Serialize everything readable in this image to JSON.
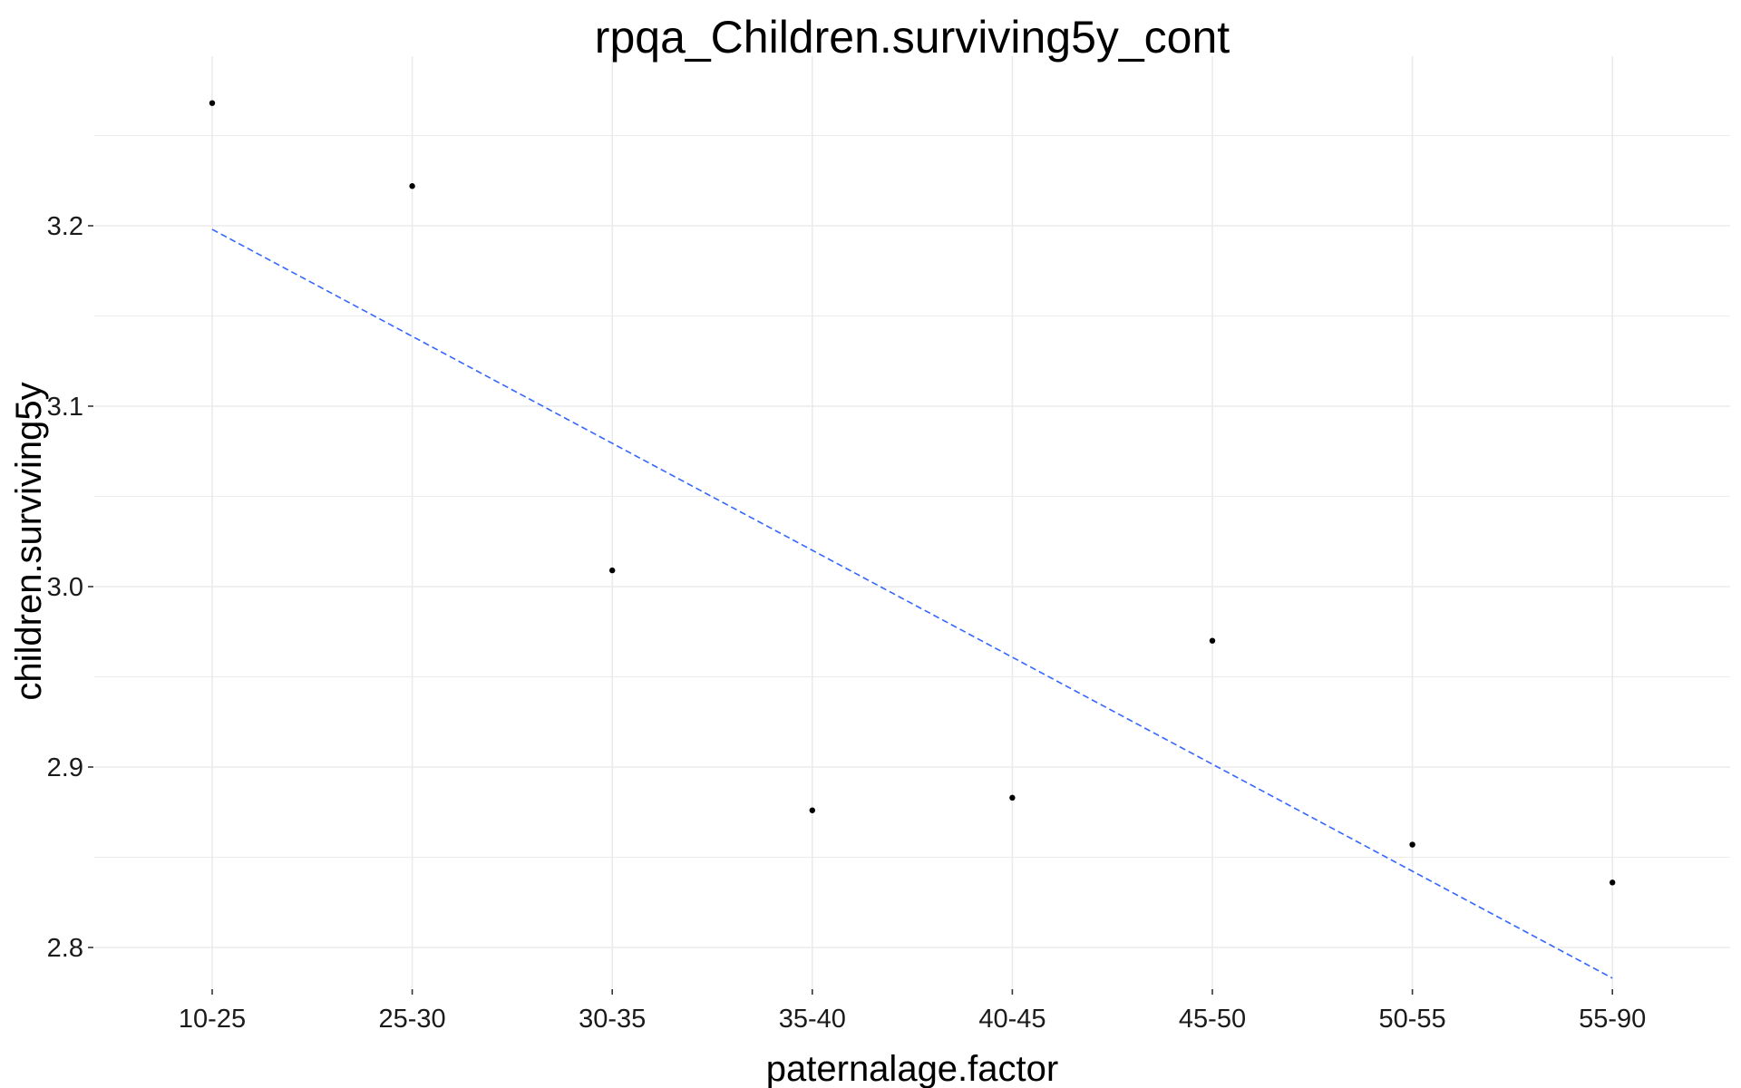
{
  "chart_data": {
    "type": "scatter",
    "title": "rpqa_Children.surviving5y_cont",
    "xlabel": "paternalage.factor",
    "ylabel": "children.surviving5y",
    "categories": [
      "10-25",
      "25-30",
      "30-35",
      "35-40",
      "40-45",
      "45-50",
      "50-55",
      "55-90"
    ],
    "values": [
      3.268,
      3.222,
      3.009,
      2.876,
      2.883,
      2.97,
      2.857,
      2.836
    ],
    "fit_line": {
      "style": "dashed",
      "color": "#3366ff",
      "start": {
        "x": "10-25",
        "y": 3.198
      },
      "end": {
        "x": "55-90",
        "y": 2.783
      }
    },
    "ylim": [
      2.765,
      3.286
    ],
    "y_ticks": [
      2.8,
      2.9,
      3.0,
      3.1,
      3.2
    ],
    "y_tick_labels": [
      "2.8",
      "2.9",
      "3.0",
      "3.1",
      "3.2"
    ],
    "grid": true,
    "legend": "none",
    "point_color": "#000000",
    "grid_color": "#ebebeb"
  }
}
